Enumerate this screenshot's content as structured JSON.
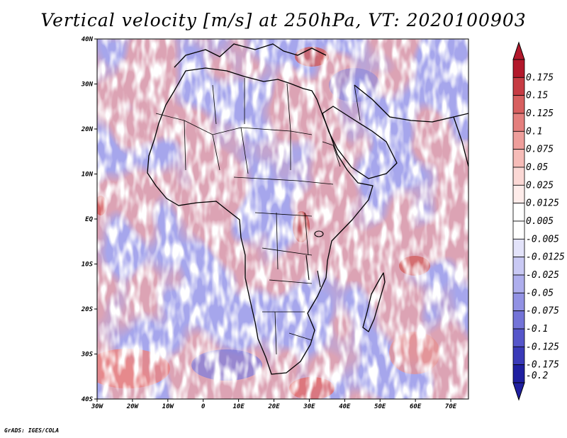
{
  "title": "Vertical velocity [m/s] at 250hPa, VT: 2020100903",
  "credit": "GrADS: IGES/COLA",
  "map": {
    "lat_labels": [
      "40N",
      "30N",
      "20N",
      "10N",
      "EQ",
      "10S",
      "20S",
      "30S",
      "40S"
    ],
    "lon_labels": [
      "30W",
      "20W",
      "10W",
      "0",
      "10E",
      "20E",
      "30E",
      "40E",
      "50E",
      "60E",
      "70E"
    ]
  },
  "colorbar": {
    "levels": [
      {
        "label": "0.175",
        "color": "#b2182b"
      },
      {
        "label": "0.15",
        "color": "#c63b43"
      },
      {
        "label": "0.125",
        "color": "#d75f5f"
      },
      {
        "label": "0.1",
        "color": "#e47f7d"
      },
      {
        "label": "0.075",
        "color": "#ee9e9b"
      },
      {
        "label": "0.05",
        "color": "#f6bcb8"
      },
      {
        "label": "0.025",
        "color": "#fbd8d5"
      },
      {
        "label": "0.0125",
        "color": "#feecea"
      },
      {
        "label": "0.005",
        "color": "#ffffff"
      },
      {
        "label": "-0.005",
        "color": "#ffffff"
      },
      {
        "label": "-0.0125",
        "color": "#e3e3fa"
      },
      {
        "label": "-0.025",
        "color": "#c9c9f4"
      },
      {
        "label": "-0.05",
        "color": "#aeaeed"
      },
      {
        "label": "-0.075",
        "color": "#9292e4"
      },
      {
        "label": "-0.1",
        "color": "#7474d8"
      },
      {
        "label": "-0.125",
        "color": "#5656ca"
      },
      {
        "label": "-0.175",
        "color": "#3a3ab8"
      },
      {
        "label": "-0.2",
        "color": "#1f1fa0"
      }
    ]
  }
}
